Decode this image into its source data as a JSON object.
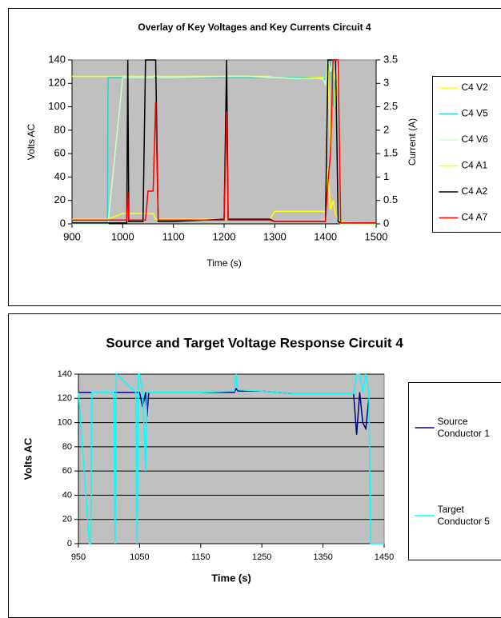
{
  "chart_data": [
    {
      "type": "line",
      "title": "Overlay of Key Voltages and Key Currents Circuit 4",
      "xlabel": "Time (s)",
      "ylabel": "Volts AC",
      "y2label": "Current (A)",
      "xlim": [
        900,
        1500
      ],
      "xticks": [
        900,
        1000,
        1100,
        1200,
        1300,
        1400,
        1500
      ],
      "ylim": [
        0,
        140
      ],
      "yticks": [
        0,
        20,
        40,
        60,
        80,
        100,
        120,
        140
      ],
      "y2lim": [
        0,
        3.5
      ],
      "y2ticks": [
        0,
        0.5,
        1,
        1.5,
        2,
        2.5,
        3,
        3.5
      ],
      "grid": false,
      "x": [
        900,
        970,
        971,
        1000,
        1008,
        1010,
        1012,
        1040,
        1045,
        1050,
        1055,
        1060,
        1065,
        1070,
        1100,
        1200,
        1205,
        1208,
        1250,
        1290,
        1300,
        1350,
        1395,
        1400,
        1405,
        1410,
        1415,
        1420,
        1425,
        1430,
        1500
      ],
      "series": [
        {
          "name": "C4 V2",
          "color": "#ffff00",
          "values": [
            126,
            126,
            126,
            126,
            126,
            126,
            126,
            126,
            125,
            126,
            126,
            126,
            126,
            126,
            126,
            126,
            126,
            126,
            126,
            126,
            125,
            125,
            125,
            125,
            140,
            60,
            140,
            100,
            140,
            0,
            0
          ]
        },
        {
          "name": "C4 V5",
          "color": "#33cccc",
          "values": [
            0,
            0,
            125,
            125,
            125,
            125,
            125,
            125,
            125,
            125,
            125,
            125,
            125,
            125,
            125,
            125,
            125,
            125,
            125,
            125,
            125,
            125,
            124,
            124,
            140,
            140,
            100,
            140,
            140,
            0,
            0
          ]
        },
        {
          "name": "C4 V6",
          "color": "#ccffcc",
          "values": [
            0,
            0,
            0,
            125,
            125,
            125,
            125,
            125,
            125,
            125,
            125,
            125,
            127,
            125,
            125,
            126,
            126,
            126,
            126,
            125,
            125,
            124,
            124,
            119,
            140,
            130,
            140,
            120,
            140,
            0,
            0
          ]
        },
        {
          "name": "C4 A1",
          "color": "#ffff00",
          "axis": "y2",
          "values": [
            0.1,
            0.1,
            0.1,
            0.22,
            0.22,
            0.22,
            0.22,
            0.22,
            0.22,
            0.22,
            0.22,
            0.22,
            0.1,
            0.1,
            0.1,
            0.1,
            0.1,
            0.1,
            0.1,
            0.1,
            0.27,
            0.27,
            0.27,
            0.27,
            1.2,
            0.3,
            0.5,
            0.2,
            0.1,
            0.05,
            0
          ]
        },
        {
          "name": "C4 A2",
          "color": "#000000",
          "axis": "y2",
          "values": [
            0.02,
            0.02,
            0.02,
            0.02,
            0.02,
            3.5,
            0.05,
            0.05,
            3.5,
            3.5,
            3.5,
            3.5,
            3.5,
            0.05,
            0.05,
            0.1,
            3.5,
            0.1,
            0.1,
            0.1,
            0.05,
            0.05,
            0.05,
            0.05,
            3.5,
            3.5,
            3.5,
            3.5,
            0.05,
            0.02,
            0.02
          ]
        },
        {
          "name": "C4 A7",
          "color": "#ff0000",
          "axis": "y2",
          "values": [
            0.08,
            0.08,
            0.08,
            0.08,
            0.08,
            0.7,
            0.08,
            0.08,
            0.08,
            0.7,
            0.7,
            0.7,
            2.6,
            0.08,
            0.08,
            0.08,
            2.4,
            0.08,
            0.08,
            0.08,
            0.05,
            0.05,
            0.05,
            0.05,
            0.9,
            1.5,
            3.5,
            3.5,
            3.5,
            0.02,
            0.02
          ]
        }
      ]
    },
    {
      "type": "line",
      "title": "Source and Target Voltage Response Circuit 4",
      "xlabel": "Time (s)",
      "ylabel": "Volts AC",
      "xlim": [
        950,
        1450
      ],
      "xticks": [
        950,
        1050,
        1150,
        1250,
        1350,
        1450
      ],
      "ylim": [
        0,
        140
      ],
      "yticks": [
        0,
        20,
        40,
        60,
        80,
        100,
        120,
        140
      ],
      "grid": true,
      "x": [
        950,
        968,
        970,
        972,
        1008,
        1010,
        1012,
        1044,
        1046,
        1048,
        1050,
        1055,
        1060,
        1062,
        1065,
        1070,
        1150,
        1205,
        1208,
        1211,
        1250,
        1300,
        1400,
        1405,
        1410,
        1415,
        1420,
        1425,
        1428,
        1430,
        1450
      ],
      "series": [
        {
          "name": "Source Conductor 1",
          "color": "#000080",
          "values": [
            125,
            125,
            125,
            125,
            125,
            125,
            125,
            125,
            125,
            125,
            125,
            113,
            125,
            105,
            125,
            125,
            125,
            125,
            128,
            126,
            126,
            124,
            124,
            90,
            125,
            100,
            95,
            120,
            null,
            null,
            null
          ]
        },
        {
          "name": "Target Conductor 5",
          "color": "#00ffff",
          "values": [
            125,
            0,
            0,
            125,
            125,
            0,
            140,
            125,
            0,
            140,
            140,
            125,
            60,
            125,
            125,
            125,
            125,
            126,
            140,
            127,
            126,
            124,
            124,
            140,
            140,
            125,
            140,
            125,
            0,
            0,
            0
          ]
        }
      ]
    }
  ]
}
